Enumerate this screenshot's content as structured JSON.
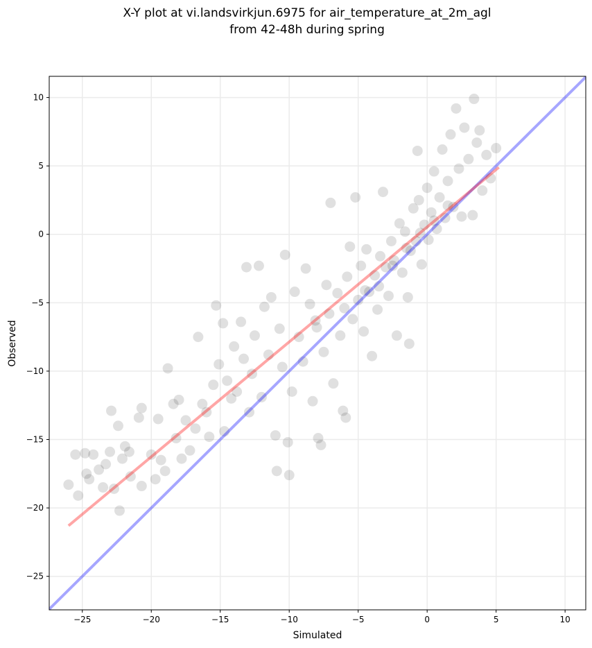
{
  "chart_data": {
    "type": "scatter",
    "title": [
      "X-Y plot at vi.landsvirkjun.6975 for air_temperature_at_2m_agl",
      "from 42-48h during spring"
    ],
    "xlabel": "Simulated",
    "ylabel": "Observed",
    "xlim": [
      -27.4,
      11.5
    ],
    "ylim": [
      -27.45,
      11.55
    ],
    "xticks": [
      {
        "value": -25,
        "label": "−25"
      },
      {
        "value": -20,
        "label": "−20"
      },
      {
        "value": -15,
        "label": "−15"
      },
      {
        "value": -10,
        "label": "−10"
      },
      {
        "value": -5,
        "label": "−5"
      },
      0,
      5,
      10
    ],
    "yticks": [
      {
        "value": -25,
        "label": "−25"
      },
      {
        "value": -20,
        "label": "−20"
      },
      {
        "value": -15,
        "label": "−15"
      },
      {
        "value": -10,
        "label": "−10"
      },
      {
        "value": -5,
        "label": "−5"
      },
      0,
      5,
      10
    ],
    "grid": true,
    "series": [
      {
        "color": "#000000",
        "x": [
          -26,
          -25.5,
          -25.3,
          -24.8,
          -24.7,
          -24.5,
          -24.2,
          -23.8,
          -23.5,
          -23.3,
          -23,
          -22.9,
          -22.7,
          -22.4,
          -22.3,
          -22.1,
          -21.9,
          -21.6,
          -21.5,
          -20.9,
          -20.7,
          -20.7,
          -20,
          -19.7,
          -19.5,
          -19.3,
          -19,
          -18.8,
          -18.4,
          -18.2,
          -18,
          -17.8,
          -17.5,
          -17.2,
          -16.8,
          -16.6,
          -16.3,
          -16,
          -15.8,
          -15.5,
          -15.3,
          -15.1,
          -14.8,
          -14.7,
          -14.5,
          -14.2,
          -14,
          -13.8,
          -13.5,
          -13.3,
          -13.1,
          -12.9,
          -12.7,
          -12.5,
          -12.2,
          -12,
          -11.8,
          -11.5,
          -11.3,
          -11,
          -10.9,
          -10.7,
          -10.5,
          -10.3,
          -10.1,
          -10,
          -9.8,
          -9.6,
          -9.3,
          -9,
          -8.8,
          -8.5,
          -8.3,
          -8.1,
          -7.9,
          -7.7,
          -7.5,
          -7.3,
          -7.1,
          -7,
          -6.8,
          -6.5,
          -6.3,
          -6.1,
          -5.9,
          -5.8,
          -5.6,
          -5.4,
          -5.2,
          -5,
          -4.8,
          -4.6,
          -4.4,
          -4.2,
          -4,
          -3.8,
          -3.6,
          -3.4,
          -3.2,
          -3,
          -2.8,
          -2.6,
          -2.4,
          -2.2,
          -2,
          -1.8,
          -1.6,
          -1.4,
          -1.3,
          -1.2,
          -1,
          -0.8,
          -0.7,
          -0.6,
          -0.4,
          -0.2,
          0,
          0.1,
          0.3,
          0.5,
          0.7,
          0.9,
          1.1,
          1.3,
          1.5,
          1.7,
          1.9,
          2.1,
          2.3,
          2.5,
          2.7,
          3,
          3.3,
          3.4,
          3.6,
          3.8,
          4,
          4.3,
          4.6,
          5,
          -3.5,
          -2.5,
          -1.5,
          -0.5,
          0.5,
          1.5,
          -6,
          -8,
          -4.5
        ],
        "values": [
          -18.3,
          -16.1,
          -19.1,
          -16,
          -17.5,
          -17.9,
          -16.1,
          -17.2,
          -18.5,
          -16.8,
          -15.9,
          -12.9,
          -18.6,
          -14,
          -20.2,
          -16.4,
          -15.5,
          -15.9,
          -17.7,
          -13.4,
          -12.7,
          -18.4,
          -16.1,
          -17.9,
          -13.5,
          -16.5,
          -17.3,
          -9.8,
          -12.4,
          -14.9,
          -12.1,
          -16.4,
          -13.6,
          -15.8,
          -14.2,
          -7.5,
          -12.4,
          -13,
          -14.8,
          -11,
          -5.2,
          -9.5,
          -6.5,
          -14.4,
          -10.7,
          -12,
          -8.2,
          -11.5,
          -6.4,
          -9.1,
          -2.4,
          -13,
          -10.2,
          -7.4,
          -2.3,
          -11.9,
          -5.3,
          -8.8,
          -4.6,
          -14.7,
          -17.3,
          -6.9,
          -9.7,
          -1.5,
          -15.2,
          -17.6,
          -11.5,
          -4.2,
          -7.5,
          -9.3,
          -2.5,
          -5.1,
          -12.2,
          -6.3,
          -14.9,
          -15.4,
          -8.6,
          -3.7,
          -5.8,
          2.3,
          -10.9,
          -4.3,
          -7.4,
          -12.9,
          -13.4,
          -3.1,
          -0.9,
          -6.2,
          2.7,
          -4.8,
          -2.3,
          -7.1,
          -1.1,
          -4.2,
          -8.9,
          -3.0,
          -5.5,
          -1.6,
          3.1,
          -2.4,
          -4.5,
          -0.5,
          -1.9,
          -7.4,
          0.8,
          -2.8,
          0.2,
          -4.6,
          -8.0,
          -1.2,
          1.9,
          -0.5,
          6.1,
          2.5,
          -2.2,
          0.7,
          3.4,
          -0.4,
          1.6,
          4.6,
          0.4,
          2.7,
          6.2,
          1.2,
          3.9,
          7.3,
          2.0,
          9.2,
          4.8,
          1.3,
          7.8,
          5.5,
          1.4,
          9.9,
          6.7,
          7.6,
          3.2,
          5.8,
          4.1,
          6.3,
          -3.8,
          -2.3,
          -1.0,
          0.1,
          1.0,
          2.1,
          -5.4,
          -6.8,
          -4.1
        ]
      }
    ],
    "lines": [
      {
        "color": "#0000ff",
        "x": [
          -27.4,
          11.5
        ],
        "values": [
          -27.4,
          11.5
        ]
      },
      {
        "color": "#ff0000",
        "x": [
          -26,
          5.2
        ],
        "values": [
          -21.3,
          4.9
        ]
      }
    ]
  }
}
